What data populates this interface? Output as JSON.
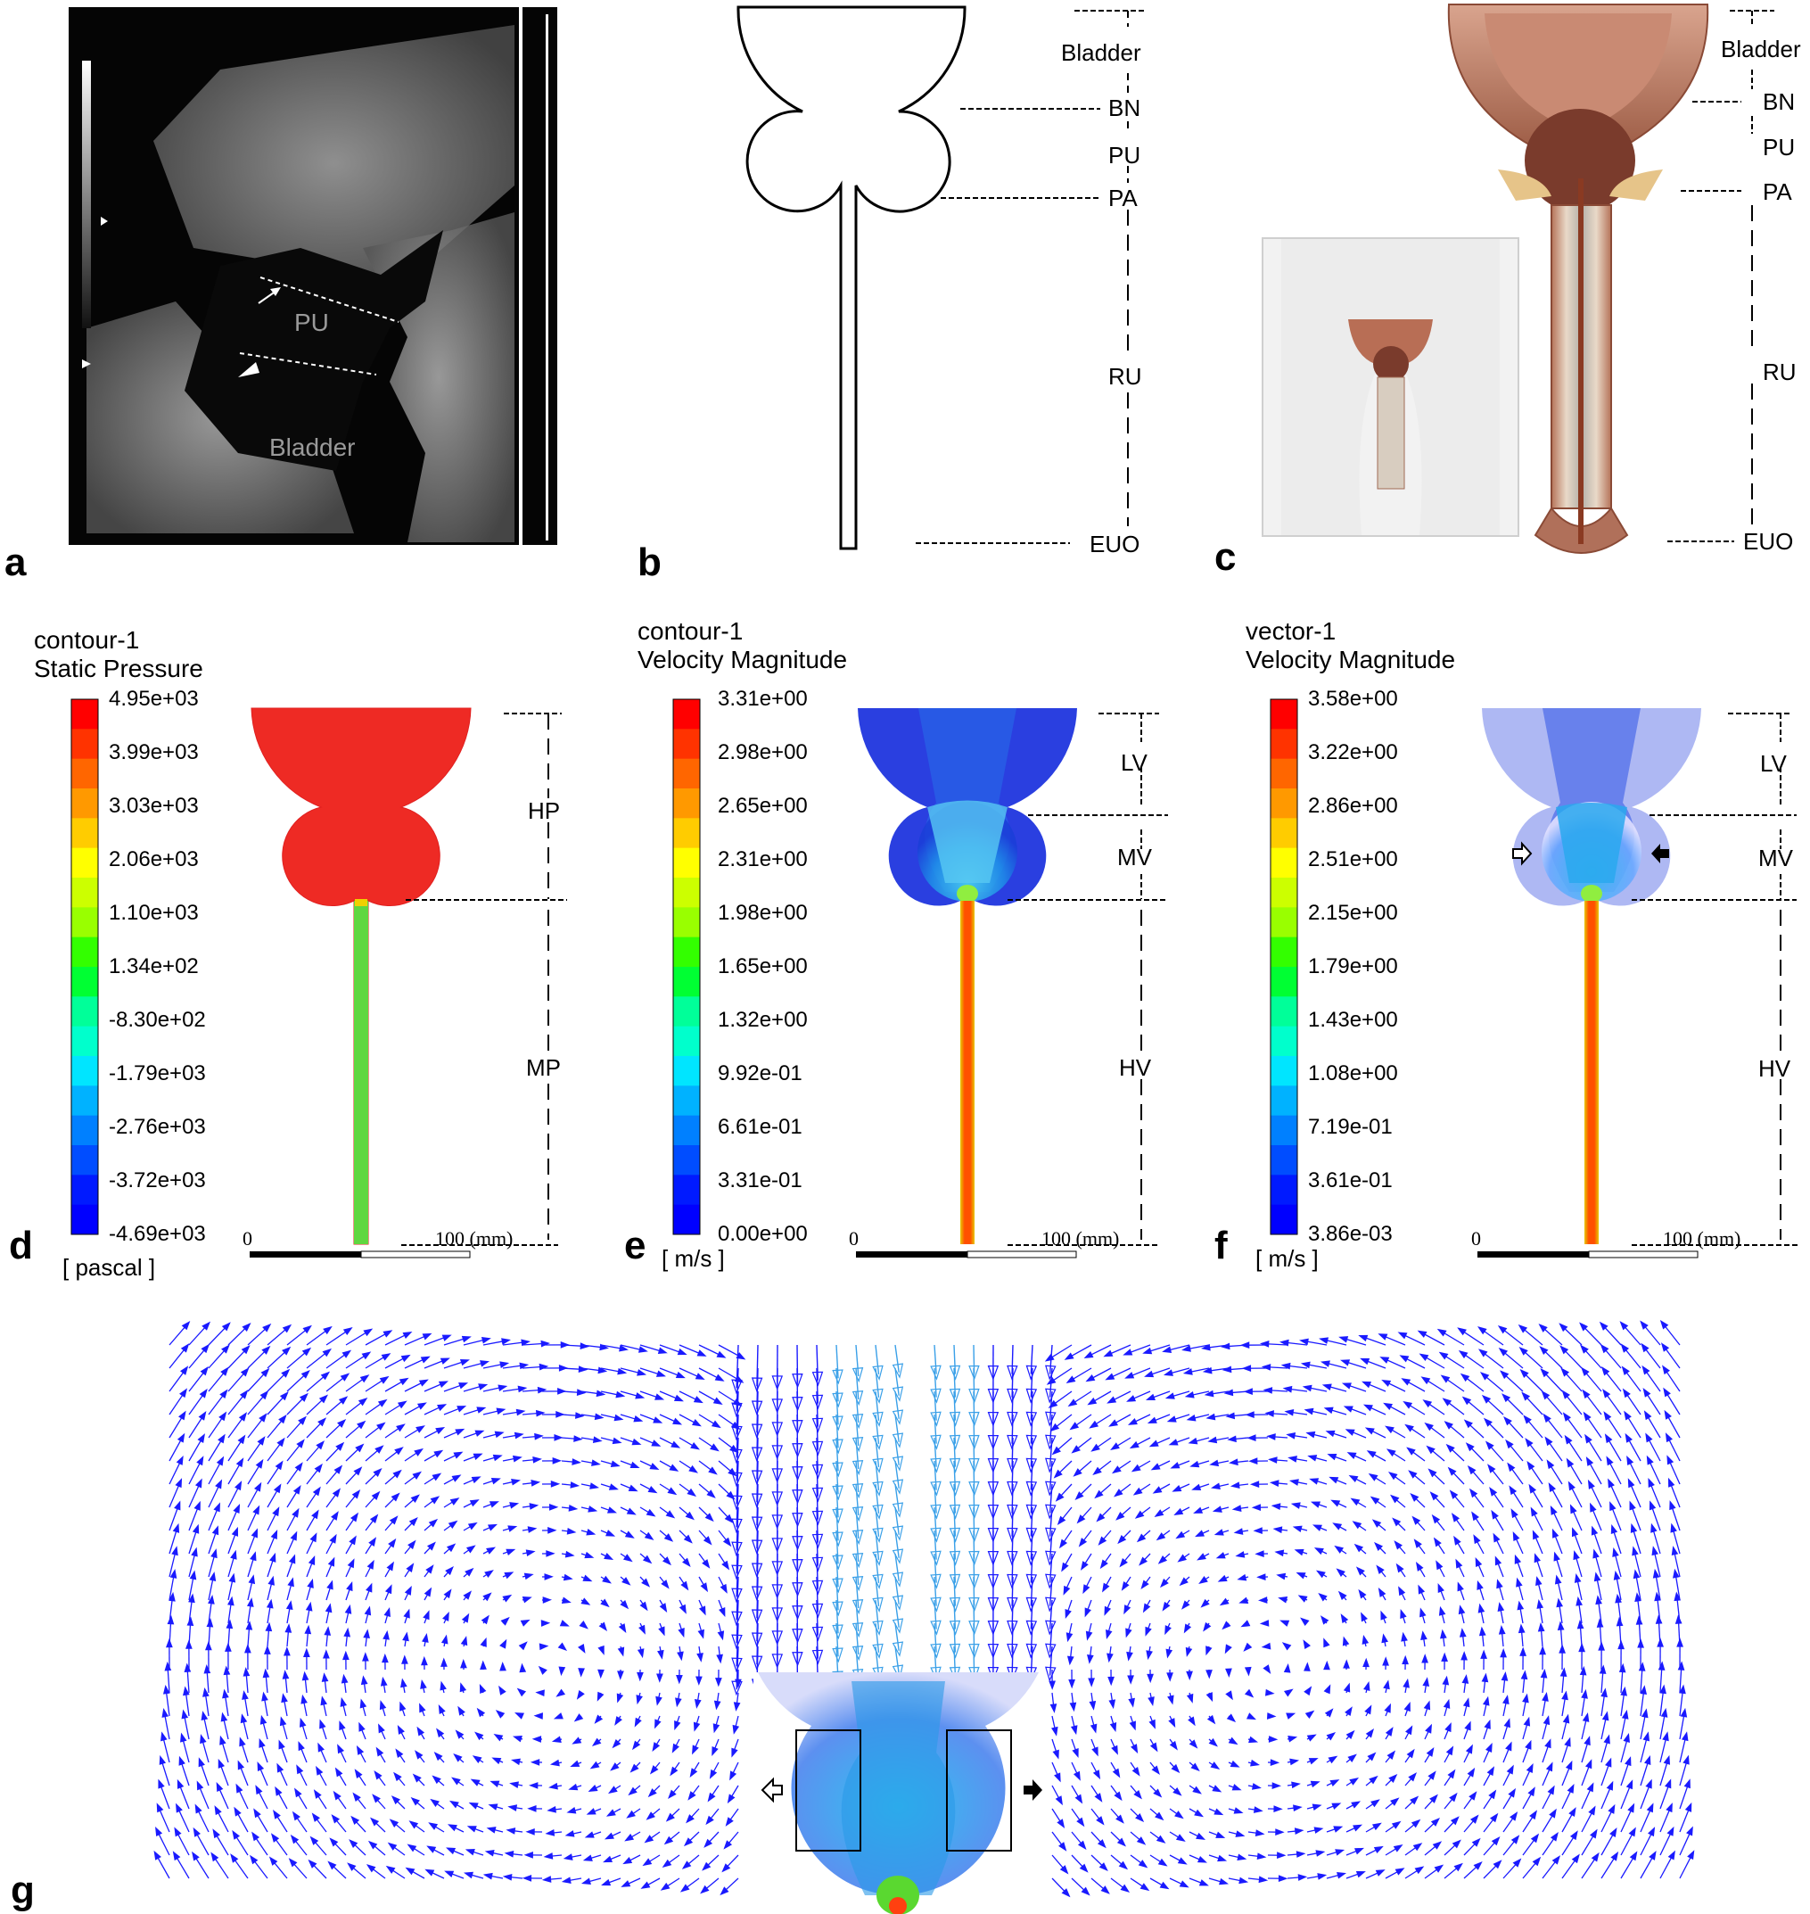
{
  "panels": {
    "a": {
      "label": "a",
      "pu": "PU",
      "bladder": "Bladder"
    },
    "b": {
      "label": "b",
      "regions": [
        "Bladder",
        "BN",
        "PU",
        "PA",
        "RU",
        "EUO"
      ]
    },
    "c": {
      "label": "c",
      "regions": [
        "Bladder",
        "BN",
        "PU",
        "PA",
        "RU",
        "EUO"
      ]
    },
    "d": {
      "label": "d",
      "title1": "contour-1",
      "title2": "Static Pressure",
      "unit": "[ pascal ]",
      "ticks": [
        "4.95e+03",
        "3.99e+03",
        "3.03e+03",
        "2.06e+03",
        "1.10e+03",
        "1.34e+02",
        "-8.30e+02",
        "-1.79e+03",
        "-2.76e+03",
        "-3.72e+03",
        "-4.69e+03"
      ],
      "regions": [
        "HP",
        "MP"
      ],
      "scale_start": "0",
      "scale_end": "100 (mm)"
    },
    "e": {
      "label": "e",
      "title1": "contour-1",
      "title2": "Velocity Magnitude",
      "unit": "[ m/s ]",
      "ticks": [
        "3.31e+00",
        "2.98e+00",
        "2.65e+00",
        "2.31e+00",
        "1.98e+00",
        "1.65e+00",
        "1.32e+00",
        "9.92e-01",
        "6.61e-01",
        "3.31e-01",
        "0.00e+00"
      ],
      "regions": [
        "LV",
        "MV",
        "HV"
      ],
      "scale_start": "0",
      "scale_end": "100 (mm)"
    },
    "f": {
      "label": "f",
      "title1": "vector-1",
      "title2": "Velocity Magnitude",
      "unit": "[ m/s ]",
      "ticks": [
        "3.58e+00",
        "3.22e+00",
        "2.86e+00",
        "2.51e+00",
        "2.15e+00",
        "1.79e+00",
        "1.43e+00",
        "1.08e+00",
        "7.19e-01",
        "3.61e-01",
        "3.86e-03"
      ],
      "regions": [
        "LV",
        "MV",
        "HV"
      ],
      "scale_start": "0",
      "scale_end": "100 (mm)"
    },
    "g": {
      "label": "g"
    }
  },
  "colors": {
    "contour_scale": [
      "#ff0000",
      "#ff3300",
      "#ff6600",
      "#ff9900",
      "#ffcc00",
      "#ffff00",
      "#ccff00",
      "#99ff00",
      "#33ff00",
      "#00ff33",
      "#00ff99",
      "#00ffcc",
      "#00e5ff",
      "#00b2ff",
      "#0080ff",
      "#004dff",
      "#001aff",
      "#0000ff"
    ],
    "vector_blue": "#1a1aff",
    "vector_light": "#3aa0e8"
  }
}
